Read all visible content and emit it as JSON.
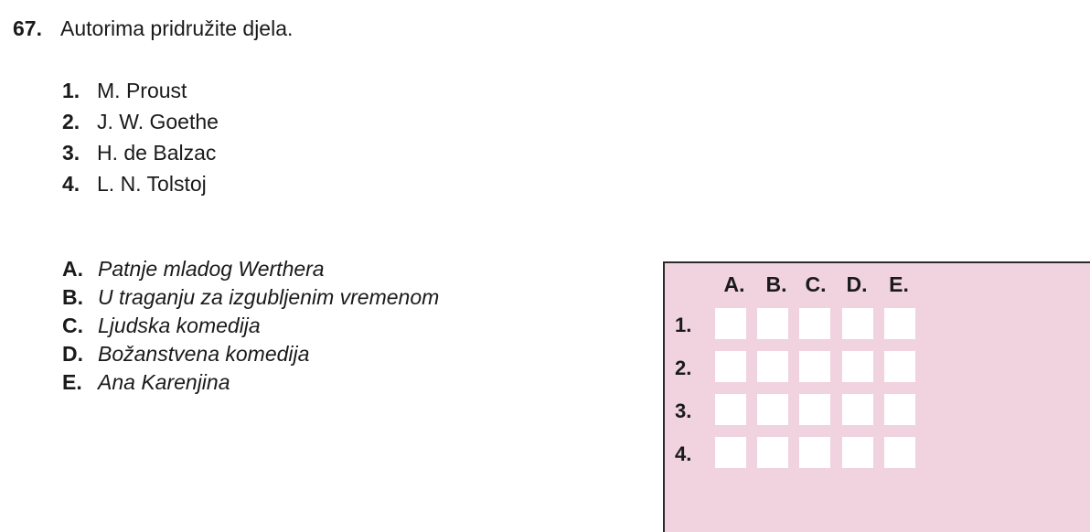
{
  "question": {
    "number": "67.",
    "text": "Autorima pridružite djela."
  },
  "authors": [
    {
      "marker": "1.",
      "name": "M. Proust"
    },
    {
      "marker": "2.",
      "name": "J. W. Goethe"
    },
    {
      "marker": "3.",
      "name": "H. de Balzac"
    },
    {
      "marker": "4.",
      "name": "L. N. Tolstoj"
    }
  ],
  "works": [
    {
      "marker": "A.",
      "title": "Patnje mladog Werthera"
    },
    {
      "marker": "B.",
      "title": "U traganju za izgubljenim vremenom"
    },
    {
      "marker": "C.",
      "title": "Ljudska komedija"
    },
    {
      "marker": "D.",
      "title": "Božanstvena komedija"
    },
    {
      "marker": "E.",
      "title": "Ana Karenjina"
    }
  ],
  "answer_grid": {
    "columns": [
      "A.",
      "B.",
      "C.",
      "D.",
      "E."
    ],
    "rows": [
      "1.",
      "2.",
      "3.",
      "4."
    ],
    "background_color": "#f0d3df",
    "cell_color": "#ffffff"
  }
}
